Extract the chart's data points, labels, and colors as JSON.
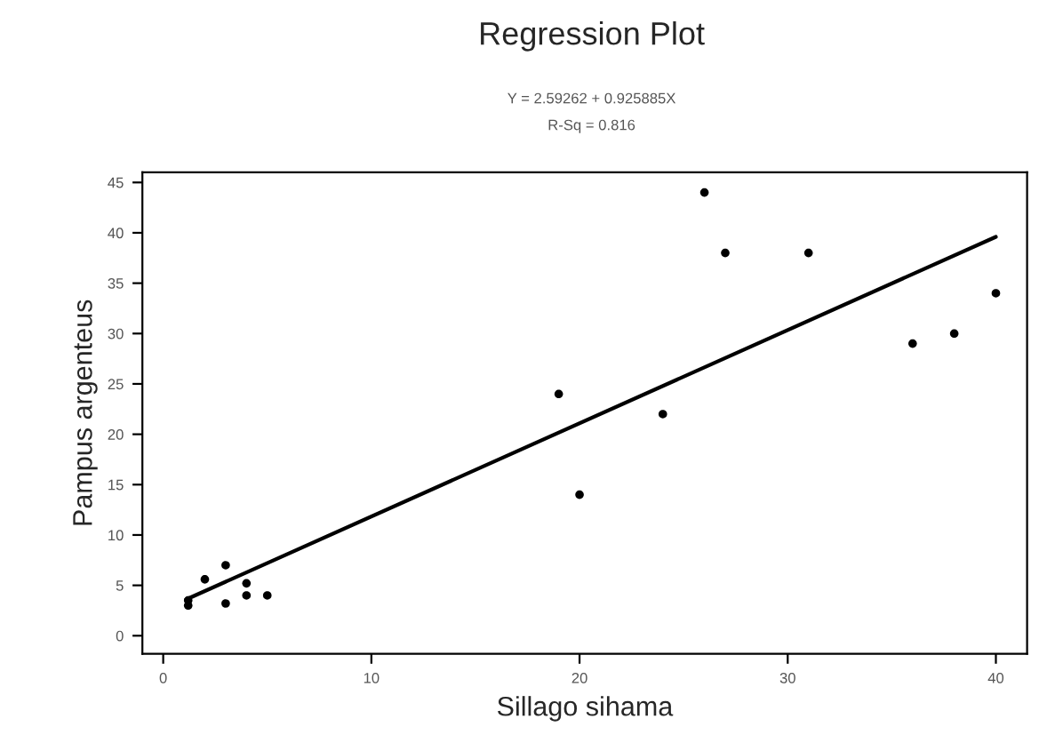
{
  "chart_data": {
    "type": "scatter",
    "title": "Regression Plot",
    "subtitle": "Y = 2.59262 + 0.925885X\nR-Sq = 0.816",
    "xlabel": "Sillago sihama",
    "ylabel": "Pampus argenteus",
    "series": [
      {
        "color": "#000000",
        "marker": "circle",
        "x": [
          1.2,
          1.2,
          2,
          3,
          3,
          4,
          4,
          5,
          19,
          20,
          24,
          26,
          27,
          31,
          36,
          38,
          40
        ],
        "values": [
          3.5,
          3,
          5.6,
          7,
          3.2,
          5.2,
          4,
          4,
          24,
          14,
          22,
          44,
          38,
          38,
          29,
          30,
          34
        ]
      },
      {
        "type": "line",
        "color": "#000000",
        "marker": "none",
        "line_style": "solid",
        "x": [
          1.1,
          40
        ],
        "values": [
          3.6,
          39.6
        ]
      }
    ],
    "xlim": [
      -1,
      41.5
    ],
    "ylim": [
      -1.8,
      46
    ],
    "xticks": [
      0,
      10,
      20,
      30,
      40
    ],
    "yticks": [
      0,
      5,
      10,
      15,
      20,
      25,
      30,
      35,
      40,
      45
    ],
    "grid": false,
    "legend": false
  }
}
